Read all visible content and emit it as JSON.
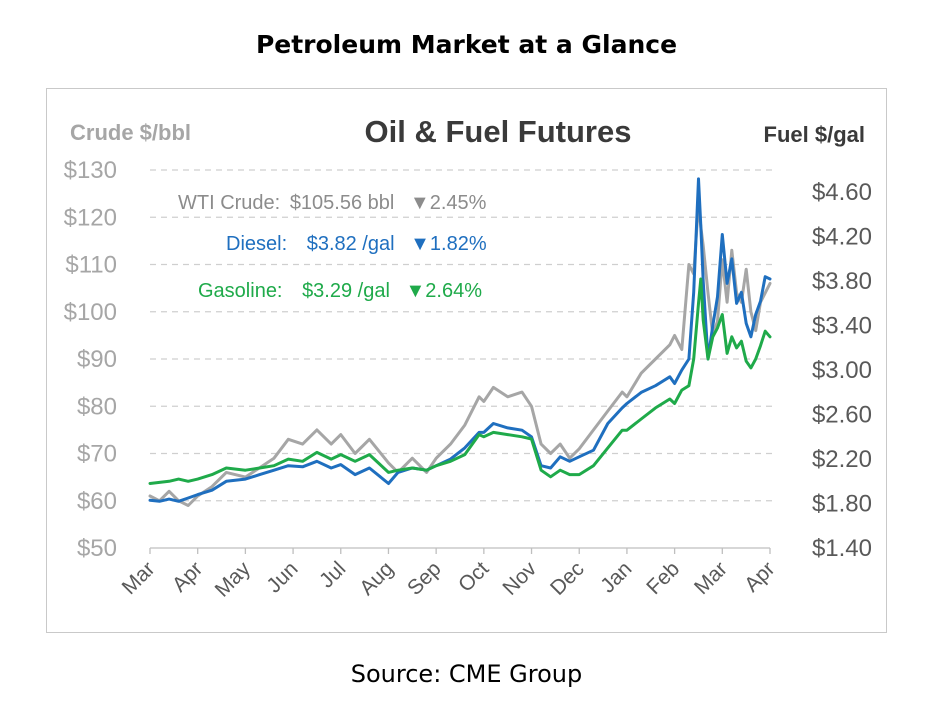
{
  "page": {
    "title": "Petroleum Market at a Glance",
    "source": "Source: CME Group"
  },
  "colors": {
    "crude": "#a6a6a6",
    "diesel": "#1f6fbf",
    "gasoline": "#1faa4a",
    "grid": "#cfcfcf",
    "axis_text": "#a6a6a6",
    "dark_text": "#3a3a3a"
  },
  "chart_data": {
    "type": "line",
    "title": "Oil & Fuel Futures",
    "ylabel_left": "Crude $/bbl",
    "ylabel_right": "Fuel $/gal",
    "ylim_left": [
      50,
      130
    ],
    "ylim_right": [
      1.4,
      4.8
    ],
    "yticks_left": [
      "$130",
      "$120",
      "$110",
      "$100",
      "$90",
      "$80",
      "$70",
      "$60",
      "$50"
    ],
    "yticks_right": [
      "$4.60",
      "$4.20",
      "$3.80",
      "$3.40",
      "$3.00",
      "$2.60",
      "$2.20",
      "$1.80",
      "$1.40"
    ],
    "categories": [
      "Mar",
      "Apr",
      "May",
      "Jun",
      "Jul",
      "Aug",
      "Sep",
      "Oct",
      "Nov",
      "Dec",
      "Jan",
      "Feb",
      "Mar",
      "Apr"
    ],
    "grid": true,
    "annotations": {
      "crude": {
        "label": "WTI Crude:",
        "value": "$105.56 bbl",
        "change": "▼2.45%"
      },
      "diesel": {
        "label": "Diesel:",
        "value": "$3.82 /gal",
        "change": "▼1.82%"
      },
      "gasoline": {
        "label": "Gasoline:",
        "value": "$3.29 /gal",
        "change": "▼2.64%"
      }
    },
    "series": [
      {
        "name": "WTI Crude",
        "axis": "left",
        "x": [
          0,
          0.2,
          0.4,
          0.6,
          0.8,
          1.0,
          1.3,
          1.6,
          2.0,
          2.3,
          2.6,
          2.9,
          3.2,
          3.5,
          3.8,
          4.0,
          4.3,
          4.6,
          5.0,
          5.2,
          5.5,
          5.8,
          6.0,
          6.3,
          6.6,
          6.9,
          7.0,
          7.2,
          7.5,
          7.8,
          8.0,
          8.2,
          8.4,
          8.6,
          8.8,
          9.0,
          9.3,
          9.6,
          9.9,
          10.0,
          10.3,
          10.6,
          10.9,
          11.0,
          11.15,
          11.3,
          11.4,
          11.5,
          11.55,
          11.6,
          11.7,
          11.8,
          11.9,
          12.0,
          12.1,
          12.2,
          12.3,
          12.4,
          12.5,
          12.6,
          12.7,
          12.8,
          12.9,
          13.0
        ],
        "values": [
          61,
          60,
          62,
          60,
          59,
          61,
          63,
          66,
          65,
          67,
          69,
          73,
          72,
          75,
          72,
          74,
          70,
          73,
          68,
          66,
          69,
          66,
          69,
          72,
          76,
          82,
          81,
          84,
          82,
          83,
          80,
          72,
          70,
          72,
          69,
          71,
          75,
          79,
          83,
          82,
          87,
          90,
          93,
          95,
          92,
          110,
          108,
          123,
          118,
          114,
          104,
          95,
          98,
          111,
          102,
          113,
          104,
          102,
          109,
          100,
          96,
          102,
          104,
          106
        ]
      },
      {
        "name": "Diesel",
        "axis": "right",
        "x": [
          0,
          0.2,
          0.4,
          0.6,
          0.8,
          1.0,
          1.3,
          1.6,
          2.0,
          2.3,
          2.6,
          2.9,
          3.2,
          3.5,
          3.8,
          4.0,
          4.3,
          4.6,
          5.0,
          5.2,
          5.5,
          5.8,
          6.0,
          6.3,
          6.6,
          6.9,
          7.0,
          7.2,
          7.5,
          7.8,
          8.0,
          8.2,
          8.4,
          8.6,
          8.8,
          9.0,
          9.3,
          9.6,
          9.9,
          10.0,
          10.3,
          10.6,
          10.9,
          11.0,
          11.15,
          11.3,
          11.4,
          11.5,
          11.55,
          11.6,
          11.7,
          11.8,
          11.9,
          12.0,
          12.1,
          12.2,
          12.3,
          12.4,
          12.5,
          12.6,
          12.7,
          12.8,
          12.9,
          13.0
        ],
        "values": [
          1.83,
          1.82,
          1.84,
          1.82,
          1.85,
          1.88,
          1.92,
          2.0,
          2.02,
          2.06,
          2.1,
          2.14,
          2.13,
          2.18,
          2.12,
          2.15,
          2.06,
          2.12,
          1.98,
          2.08,
          2.12,
          2.1,
          2.14,
          2.2,
          2.3,
          2.44,
          2.44,
          2.52,
          2.48,
          2.46,
          2.4,
          2.14,
          2.12,
          2.22,
          2.18,
          2.22,
          2.28,
          2.52,
          2.66,
          2.7,
          2.8,
          2.86,
          2.94,
          2.88,
          3.0,
          3.1,
          3.7,
          4.72,
          4.3,
          3.8,
          3.1,
          3.4,
          3.66,
          4.22,
          3.78,
          4.0,
          3.6,
          3.7,
          3.42,
          3.3,
          3.5,
          3.62,
          3.84,
          3.82
        ]
      },
      {
        "name": "Gasoline",
        "axis": "right",
        "x": [
          0,
          0.2,
          0.4,
          0.6,
          0.8,
          1.0,
          1.3,
          1.6,
          2.0,
          2.3,
          2.6,
          2.9,
          3.2,
          3.5,
          3.8,
          4.0,
          4.3,
          4.6,
          5.0,
          5.2,
          5.5,
          5.8,
          6.0,
          6.3,
          6.6,
          6.9,
          7.0,
          7.2,
          7.5,
          7.8,
          8.0,
          8.2,
          8.4,
          8.6,
          8.8,
          9.0,
          9.3,
          9.6,
          9.9,
          10.0,
          10.3,
          10.6,
          10.9,
          11.0,
          11.15,
          11.3,
          11.4,
          11.5,
          11.55,
          11.6,
          11.7,
          11.8,
          11.9,
          12.0,
          12.1,
          12.2,
          12.3,
          12.4,
          12.5,
          12.6,
          12.7,
          12.8,
          12.9,
          13.0
        ],
        "values": [
          1.98,
          1.99,
          2.0,
          2.02,
          2.0,
          2.02,
          2.06,
          2.12,
          2.1,
          2.12,
          2.14,
          2.2,
          2.18,
          2.26,
          2.2,
          2.24,
          2.18,
          2.24,
          2.08,
          2.1,
          2.12,
          2.1,
          2.14,
          2.18,
          2.24,
          2.42,
          2.4,
          2.44,
          2.42,
          2.4,
          2.38,
          2.1,
          2.04,
          2.1,
          2.06,
          2.06,
          2.14,
          2.3,
          2.46,
          2.46,
          2.56,
          2.66,
          2.74,
          2.7,
          2.82,
          2.86,
          3.1,
          3.6,
          3.82,
          3.45,
          3.1,
          3.3,
          3.38,
          3.5,
          3.15,
          3.3,
          3.2,
          3.26,
          3.08,
          3.02,
          3.1,
          3.22,
          3.35,
          3.3
        ]
      }
    ]
  }
}
